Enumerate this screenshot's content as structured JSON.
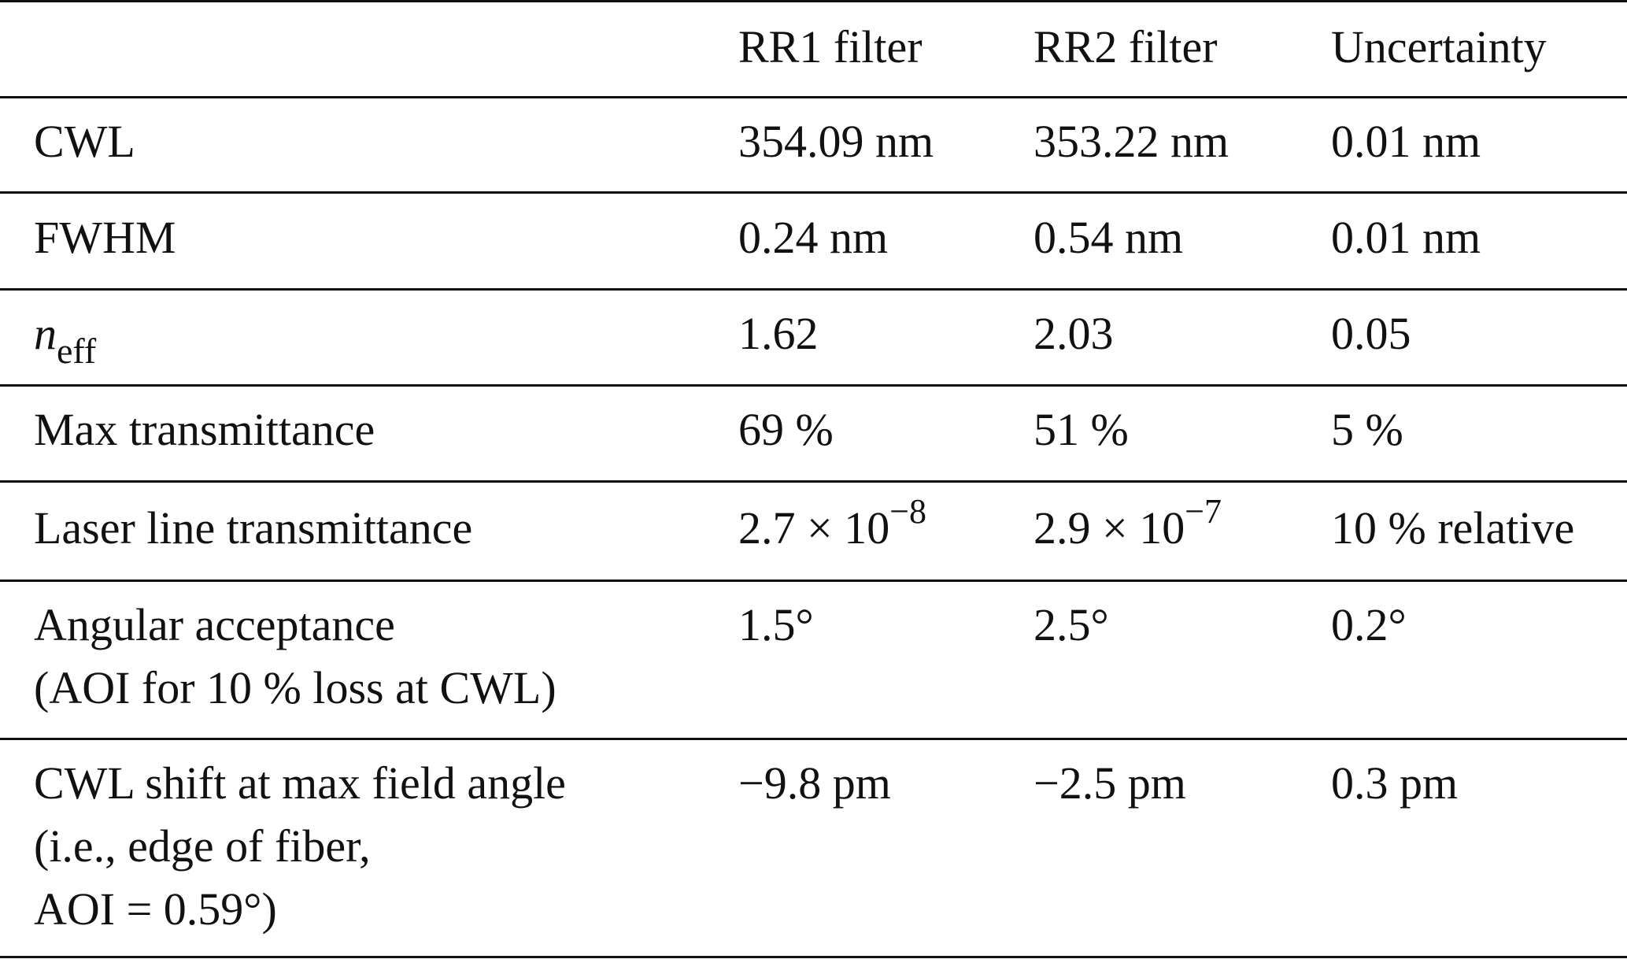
{
  "table": {
    "headers": [
      "",
      "RR1 filter",
      "RR2 filter",
      "Uncertainty"
    ],
    "rows": [
      {
        "label": "CWL",
        "rr1": "354.09 nm",
        "rr2": "353.22 nm",
        "unc": "0.01 nm"
      },
      {
        "label": "FWHM",
        "rr1": "0.24 nm",
        "rr2": "0.54 nm",
        "unc": "0.01 nm"
      },
      {
        "label_main": "n",
        "label_sub": "eff",
        "rr1": "1.62",
        "rr2": "2.03",
        "unc": "0.05"
      },
      {
        "label": "Max transmittance",
        "rr1": "69 %",
        "rr2": "51 %",
        "unc": "5 %"
      },
      {
        "label": "Laser line transmittance",
        "rr1_base": "2.7 × 10",
        "rr1_exp": "−8",
        "rr2_base": "2.9 × 10",
        "rr2_exp": "−7",
        "unc": "10 % relative"
      },
      {
        "label_line1": "Angular acceptance",
        "label_line2": "(AOI for 10 % loss at CWL)",
        "rr1": "1.5°",
        "rr2": "2.5°",
        "unc": "0.2°"
      },
      {
        "label_line1": "CWL shift at max field angle",
        "label_line2": "(i.e., edge of fiber,",
        "label_line3": "AOI = 0.59°)",
        "rr1": "−9.8 pm",
        "rr2": "−2.5 pm",
        "unc": "0.3 pm"
      }
    ]
  }
}
